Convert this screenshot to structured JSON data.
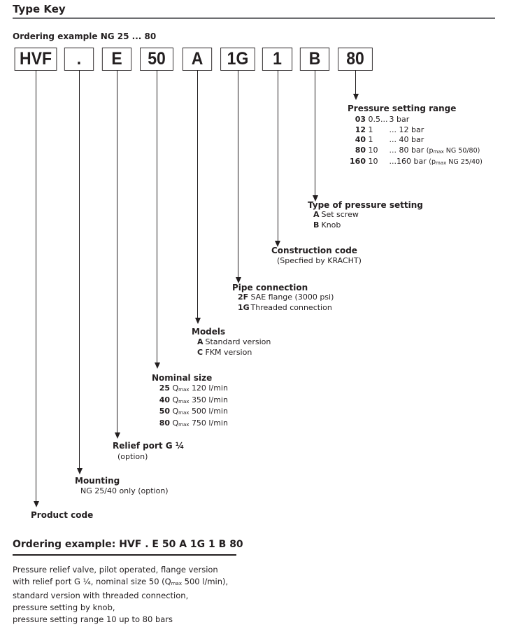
{
  "title": "Type Key",
  "ordering_heading": "Ordering example NG 25 ... 80",
  "code_boxes": [
    "HVF",
    ".",
    "E",
    "50",
    "A",
    "1G",
    "1",
    "B",
    "80"
  ],
  "pressure_range": {
    "label": "Pressure setting range",
    "items": [
      {
        "code": "03",
        "from": "0.5...",
        "to": "3 bar",
        "note": ""
      },
      {
        "code": "12",
        "from": "1",
        "to": "...  12 bar",
        "note": ""
      },
      {
        "code": "40",
        "from": "1",
        "to": "...  40 bar",
        "note": ""
      },
      {
        "code": "80",
        "from": "10",
        "to": "...  80 bar",
        "note": "NG 50/80)"
      },
      {
        "code": "160",
        "from": "10",
        "to": "...160 bar",
        "note": "NG 25/40)"
      }
    ],
    "note_prefix": "(p",
    "note_sub": "max"
  },
  "pressure_type": {
    "label": "Type of pressure setting",
    "items": [
      {
        "code": "A",
        "text": "Set screw"
      },
      {
        "code": "B",
        "text": "Knob"
      }
    ]
  },
  "construction": {
    "label": "Construction code",
    "text": "(Specfied by KRACHT)"
  },
  "pipe": {
    "label": "Pipe connection",
    "items": [
      {
        "code": "2F",
        "text": "SAE flange (3000 psi)"
      },
      {
        "code": "1G",
        "text": "Threaded connection"
      }
    ]
  },
  "models": {
    "label": "Models",
    "items": [
      {
        "code": "A",
        "text": "Standard version"
      },
      {
        "code": "C",
        "text": "FKM version"
      }
    ]
  },
  "nominal": {
    "label": "Nominal size",
    "q": "Q",
    "sub": "max",
    "items": [
      {
        "code": "25",
        "text": "120 l/min"
      },
      {
        "code": "40",
        "text": "350 l/min"
      },
      {
        "code": "50",
        "text": "500 l/min"
      },
      {
        "code": "80",
        "text": "750 l/min"
      }
    ]
  },
  "relief": {
    "label": "Relief port G ¼",
    "text": "(option)"
  },
  "mounting": {
    "label": "Mounting",
    "text": "NG 25/40 only  (option)"
  },
  "product": {
    "label": "Product code"
  },
  "example": {
    "heading": "Ordering example:  HVF . E 50 A 1G 1 B 80",
    "lines": [
      "Pressure relief valve, pilot operated, flange version",
      "with relief port G ¼, nominal size 50 (Q",
      "max",
      " 500 l/min),",
      "standard version with threaded connection,",
      "pressure setting by knob,",
      "pressure setting range 10 up to 80 bars"
    ]
  }
}
